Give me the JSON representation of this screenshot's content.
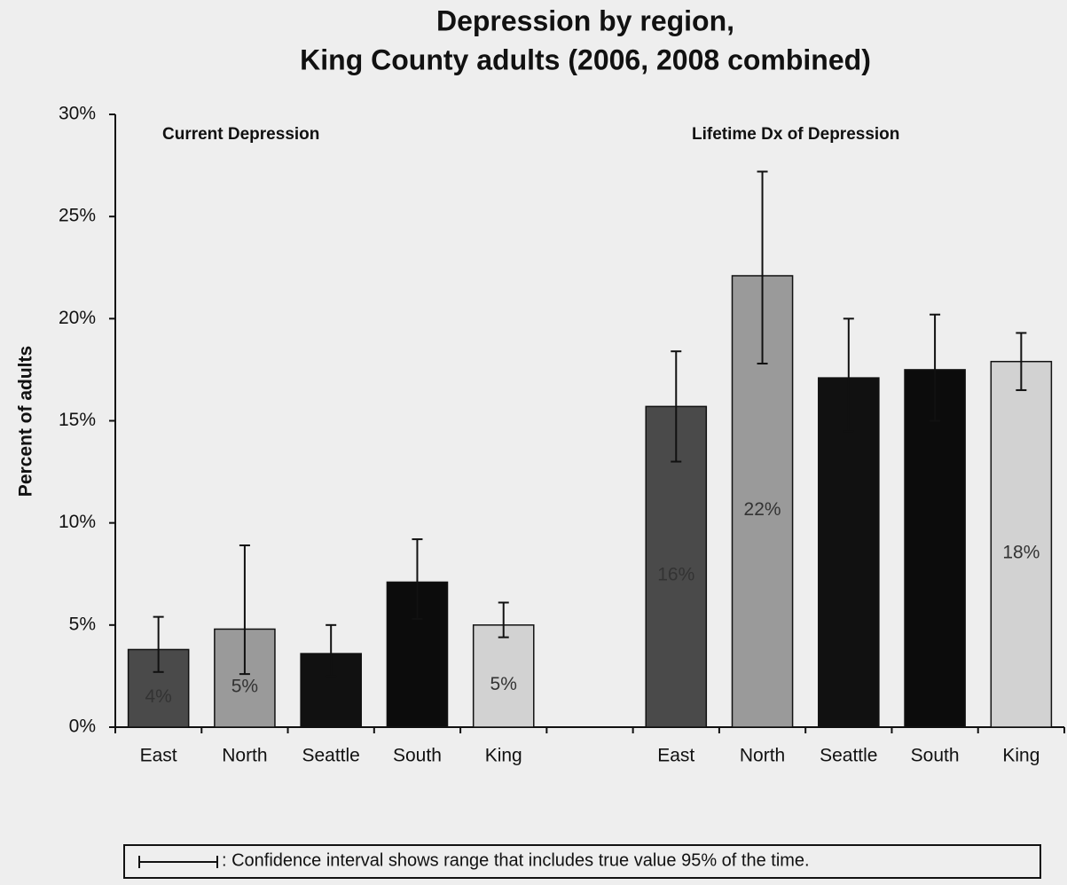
{
  "chart_data": {
    "type": "bar",
    "title": [
      "Depression by region,",
      "King County adults (2006, 2008 combined)"
    ],
    "y_label": "Percent of adults",
    "annotations": [
      "Current Depression",
      "Lifetime Dx of Depression"
    ],
    "note": ": Confidence interval shows range that includes true value 95% of the time.",
    "categories": [
      "East",
      "North",
      "Seattle",
      "South",
      "King",
      null,
      "East",
      "North",
      "Seattle",
      "South",
      "King"
    ],
    "values": [
      3.8,
      4.8,
      3.6,
      7.1,
      5.0,
      null,
      15.7,
      22.1,
      17.1,
      17.5,
      17.9
    ],
    "value_labels": [
      "4%",
      "5%",
      null,
      null,
      "5%",
      null,
      "16%",
      "22%",
      null,
      null,
      "18%"
    ],
    "ci_lower": [
      2.7,
      2.6,
      2.5,
      5.3,
      4.4,
      null,
      13.0,
      17.8,
      14.5,
      15.0,
      16.5
    ],
    "ci_upper": [
      5.4,
      8.9,
      5.0,
      9.2,
      6.1,
      null,
      18.4,
      27.2,
      20.0,
      20.2,
      19.3
    ],
    "colors": [
      "#4a4a4a",
      "#9a9a9a",
      "#111111",
      "#0c0c0c",
      "#d2d2d2",
      null,
      "#4a4a4a",
      "#9a9a9a",
      "#111111",
      "#0c0c0c",
      "#d2d2d2"
    ],
    "ylim": [
      0,
      30
    ],
    "yticks": [
      {
        "value": 0,
        "label": "0%"
      },
      {
        "value": 5,
        "label": "5%"
      },
      {
        "value": 10,
        "label": "10%"
      },
      {
        "value": 15,
        "label": "15%"
      },
      {
        "value": 20,
        "label": "20%"
      },
      {
        "value": 25,
        "label": "25%"
      },
      {
        "value": 30,
        "label": "30%"
      }
    ],
    "grid": false
  }
}
